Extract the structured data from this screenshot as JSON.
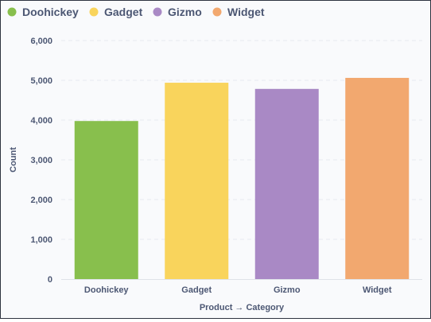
{
  "chart_data": {
    "type": "bar",
    "categories": [
      "Doohickey",
      "Gadget",
      "Gizmo",
      "Widget"
    ],
    "values": [
      3976,
      4939,
      4784,
      5061
    ],
    "colors": [
      "#88bf4d",
      "#f9d45c",
      "#a989c5",
      "#f2a86f"
    ],
    "legend": [
      "Doohickey",
      "Gadget",
      "Gizmo",
      "Widget"
    ],
    "legend_position": "top-left",
    "xlabel": "Product → Category",
    "ylabel": "Count",
    "ylim": [
      0,
      6000
    ],
    "yticks": [
      "0",
      "1,000",
      "2,000",
      "3,000",
      "4,000",
      "5,000",
      "6,000"
    ],
    "grid": true
  }
}
